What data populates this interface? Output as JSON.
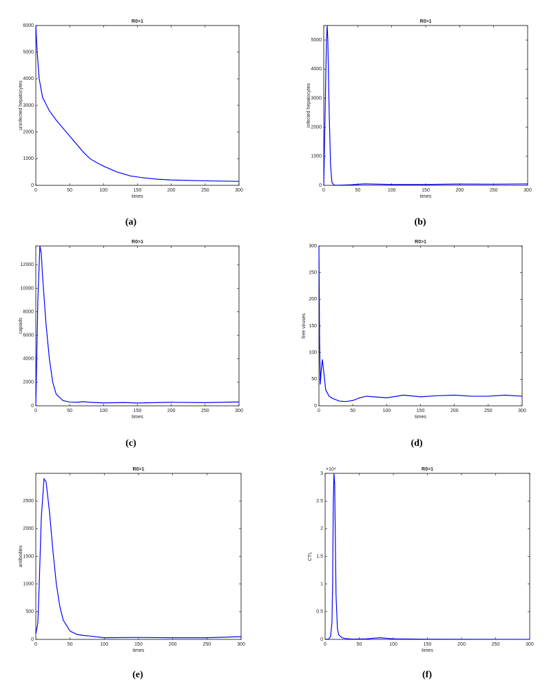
{
  "chart_data": [
    {
      "type": "line",
      "title": "R0>1",
      "xlabel": "times",
      "ylabel": "uninfected hepatocytes",
      "caption": "(a)",
      "xlim": [
        0,
        300
      ],
      "xticks": [
        0,
        50,
        100,
        150,
        200,
        250,
        300
      ],
      "ylim": [
        0,
        6000
      ],
      "yticks": [
        0,
        1000,
        2000,
        3000,
        4000,
        5000,
        6000
      ],
      "series": [
        {
          "color": "#0000ff",
          "x": [
            0,
            2,
            5,
            10,
            20,
            30,
            40,
            50,
            60,
            70,
            80,
            90,
            100,
            120,
            140,
            160,
            180,
            200,
            250,
            300
          ],
          "values": [
            6000,
            5000,
            4000,
            3300,
            2800,
            2450,
            2150,
            1850,
            1550,
            1250,
            1000,
            850,
            720,
            500,
            350,
            280,
            230,
            200,
            170,
            150
          ]
        }
      ]
    },
    {
      "type": "line",
      "title": "R0>1",
      "xlabel": "times",
      "ylabel": "infected hepatocytes",
      "caption": "(b)",
      "xlim": [
        0,
        300
      ],
      "xticks": [
        0,
        50,
        100,
        150,
        200,
        250,
        300
      ],
      "ylim": [
        0,
        5500
      ],
      "yticks": [
        0,
        1000,
        2000,
        3000,
        4000,
        5000
      ],
      "series": [
        {
          "color": "#0000ff",
          "x": [
            0,
            2,
            4,
            5,
            6,
            8,
            10,
            12,
            15,
            20,
            40,
            60,
            70,
            100,
            150,
            200,
            250,
            300
          ],
          "values": [
            0,
            2500,
            5000,
            5500,
            5000,
            2500,
            700,
            100,
            10,
            5,
            20,
            50,
            45,
            30,
            30,
            45,
            40,
            50
          ]
        }
      ]
    },
    {
      "type": "line",
      "title": "R0>1",
      "xlabel": "times",
      "ylabel": "capsids",
      "caption": "(c)",
      "xlim": [
        0,
        300
      ],
      "xticks": [
        0,
        50,
        100,
        150,
        200,
        250,
        300
      ],
      "ylim": [
        0,
        13600
      ],
      "yticks": [
        0,
        2000,
        4000,
        6000,
        8000,
        10000,
        12000
      ],
      "series": [
        {
          "color": "#0000ff",
          "x": [
            0,
            3,
            6,
            8,
            10,
            15,
            20,
            25,
            30,
            40,
            50,
            60,
            70,
            80,
            100,
            130,
            150,
            200,
            250,
            300
          ],
          "values": [
            0,
            9000,
            13600,
            13000,
            11000,
            7000,
            4000,
            2000,
            1000,
            450,
            320,
            300,
            350,
            300,
            250,
            280,
            240,
            300,
            270,
            330
          ]
        }
      ]
    },
    {
      "type": "line",
      "title": "R0>1",
      "xlabel": "times",
      "ylabel": "free viruses",
      "caption": "(d)",
      "xlim": [
        0,
        300
      ],
      "xticks": [
        0,
        50,
        100,
        150,
        200,
        250,
        300
      ],
      "ylim": [
        0,
        300
      ],
      "yticks": [
        0,
        50,
        100,
        150,
        200,
        250,
        300
      ],
      "series": [
        {
          "color": "#0000ff",
          "x": [
            0,
            1,
            2,
            3,
            5,
            7,
            10,
            15,
            20,
            30,
            40,
            50,
            60,
            70,
            80,
            100,
            125,
            150,
            175,
            200,
            225,
            250,
            275,
            300
          ],
          "values": [
            300,
            120,
            40,
            60,
            87,
            65,
            30,
            18,
            14,
            9,
            8,
            10,
            15,
            18,
            17,
            15,
            20,
            17,
            19,
            20,
            18,
            18,
            20,
            18
          ]
        }
      ]
    },
    {
      "type": "line",
      "title": "R0>1",
      "xlabel": "times",
      "ylabel": "antibodies",
      "caption": "(e)",
      "xlim": [
        0,
        300
      ],
      "xticks": [
        0,
        50,
        100,
        150,
        200,
        250,
        300
      ],
      "ylim": [
        0,
        3000
      ],
      "yticks": [
        0,
        500,
        1000,
        1500,
        2000,
        2500
      ],
      "series": [
        {
          "color": "#0000ff",
          "x": [
            0,
            3,
            5,
            8,
            12,
            15,
            20,
            25,
            30,
            35,
            40,
            50,
            60,
            70,
            80,
            100,
            150,
            200,
            250,
            300
          ],
          "values": [
            100,
            300,
            1000,
            2200,
            2900,
            2850,
            2300,
            1600,
            1000,
            600,
            350,
            150,
            90,
            70,
            60,
            30,
            35,
            30,
            30,
            50
          ]
        }
      ]
    },
    {
      "type": "line",
      "title": "R0>1",
      "xlabel": "times",
      "ylabel": "CTL",
      "caption": "(f)",
      "y_exponent_label": "×10⁴",
      "xlim": [
        0,
        300
      ],
      "xticks": [
        0,
        50,
        100,
        150,
        200,
        250,
        300
      ],
      "ylim": [
        0,
        30000
      ],
      "yticks": [
        0,
        {
          "value": 5000,
          "label": "0.5"
        },
        {
          "value": 10000,
          "label": "1"
        },
        {
          "value": 15000,
          "label": "1.5"
        },
        {
          "value": 20000,
          "label": "2"
        },
        {
          "value": 25000,
          "label": "2.5"
        },
        {
          "value": 30000,
          "label": "3"
        }
      ],
      "series": [
        {
          "color": "#0000ff",
          "x": [
            0,
            5,
            8,
            10,
            11,
            12,
            13,
            14,
            15,
            16,
            18,
            20,
            25,
            30,
            40,
            60,
            80,
            100,
            150,
            200,
            300
          ],
          "values": [
            0,
            50,
            500,
            3000,
            10000,
            25000,
            30000,
            28000,
            18000,
            8000,
            2000,
            800,
            300,
            150,
            50,
            100,
            300,
            100,
            30,
            20,
            10
          ]
        }
      ]
    }
  ]
}
